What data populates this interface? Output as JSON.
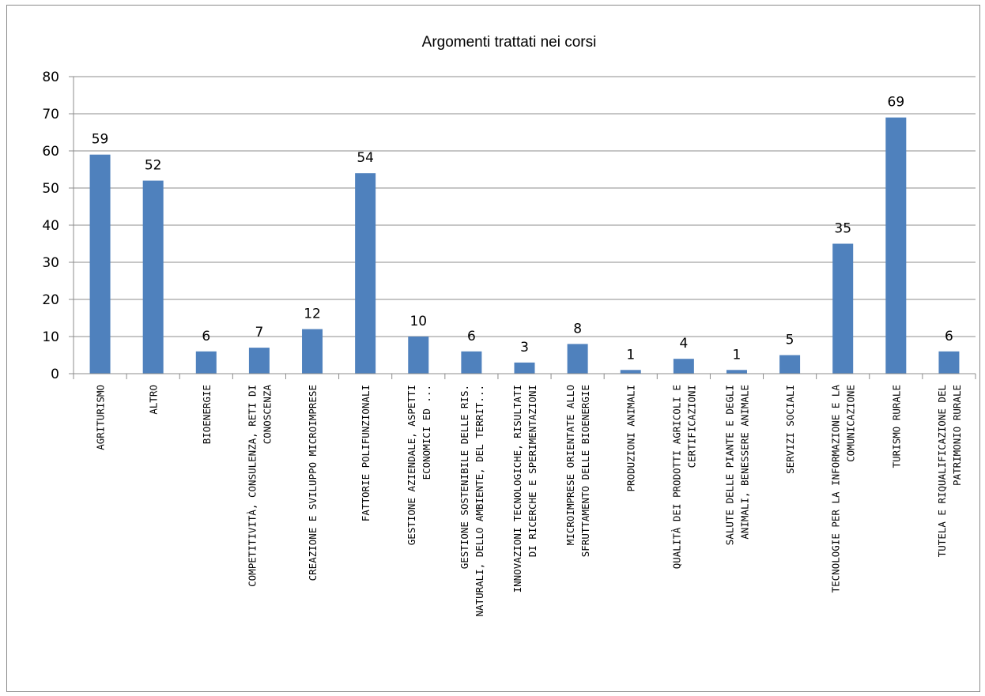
{
  "chart_data": {
    "type": "bar",
    "title": "Argomenti trattati nei corsi",
    "xlabel": "",
    "ylabel": "",
    "ylim": [
      0,
      80
    ],
    "yticks": [
      0,
      10,
      20,
      30,
      40,
      50,
      60,
      70,
      80
    ],
    "grid": true,
    "legend": "none",
    "bar_color": "#4f81bd",
    "categories": [
      [
        "AGRITURISMO"
      ],
      [
        "ALTRO"
      ],
      [
        "BIOENERGIE"
      ],
      [
        "COMPETITIVITÀ, CONSULENZA, RETI DI",
        "CONOSCENZA"
      ],
      [
        "CREAZIONE E SVILUPPO MICROIMPRESE"
      ],
      [
        "FATTORIE POLIFUNZIONALI"
      ],
      [
        "GESTIONE AZIENDALE,  ASPETTI",
        "ECONOMICI ED ..."
      ],
      [
        "GESTIONE SOSTENIBILE DELLE RIS.",
        "NATURALI, DELLO AMBIENTE, DEL TERRIT..."
      ],
      [
        "INNOVAZIONI TECNOLOGICHE, RISULTATI",
        "DI RICERCHE E SPERIMENTAZIONI"
      ],
      [
        "MICROIMPRESE ORIENTATE ALLO",
        "SFRUTTAMENTO DELLE BIOENERGIE"
      ],
      [
        "PRODUZIONI ANIMALI"
      ],
      [
        "QUALITÀ DEI PRODOTTI AGRICOLI E",
        "CERTIFICAZIONI"
      ],
      [
        "SALUTE DELLE PIANTE E DEGLI",
        "ANIMALI, BENESSERE ANIMALE"
      ],
      [
        "SERVIZI SOCIALI"
      ],
      [
        "TECNOLOGIE PER LA INFORMAZIONE E LA",
        "COMUNICAZIONE"
      ],
      [
        "TURISMO RURALE"
      ],
      [
        "TUTELA E RIQUALIFICAZIONE DEL",
        "PATRIMONIO RURALE"
      ]
    ],
    "values": [
      59,
      52,
      6,
      7,
      12,
      54,
      10,
      6,
      3,
      8,
      1,
      4,
      1,
      5,
      35,
      69,
      6
    ]
  }
}
